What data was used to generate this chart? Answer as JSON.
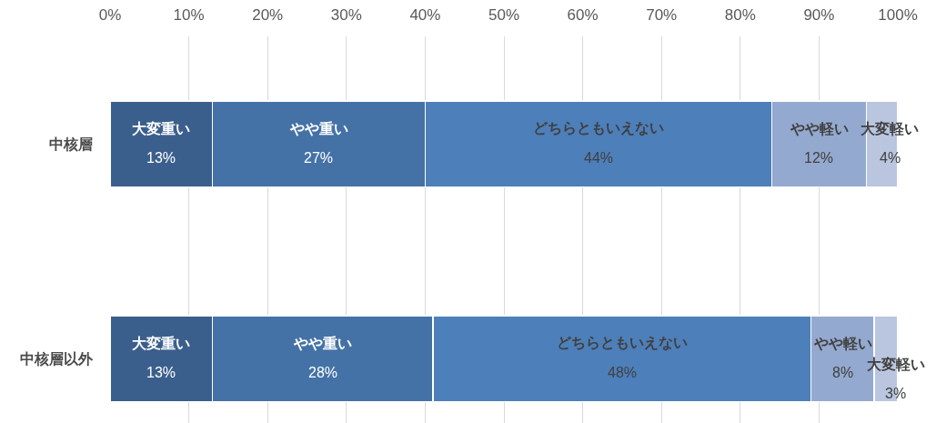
{
  "chart_data": {
    "type": "bar",
    "orientation": "horizontal",
    "stacked": true,
    "categories": [
      "中核層",
      "中核層以外"
    ],
    "series": [
      {
        "name": "大変重い",
        "color": "#3b5f8c",
        "values": [
          13,
          13
        ],
        "value_labels": [
          "13%",
          "13%"
        ]
      },
      {
        "name": "やや重い",
        "color": "#4472a6",
        "values": [
          27,
          28
        ],
        "value_labels": [
          "27%",
          "28%"
        ]
      },
      {
        "name": "どちらともいえない",
        "color": "#4d7fba",
        "values": [
          44,
          48
        ],
        "value_labels": [
          "44%",
          "48%"
        ]
      },
      {
        "name": "やや軽い",
        "color": "#94a9cf",
        "values": [
          12,
          8
        ],
        "value_labels": [
          "12%",
          "8%"
        ]
      },
      {
        "name": "大変軽い",
        "color": "#bac6df",
        "values": [
          4,
          3
        ],
        "value_labels": [
          "4%",
          "3%"
        ]
      }
    ],
    "xlim": [
      0,
      100
    ],
    "xticks": [
      {
        "value": 0,
        "label": "0%"
      },
      {
        "value": 10,
        "label": "10%"
      },
      {
        "value": 20,
        "label": "20%"
      },
      {
        "value": 30,
        "label": "30%"
      },
      {
        "value": 40,
        "label": "40%"
      },
      {
        "value": 50,
        "label": "50%"
      },
      {
        "value": 60,
        "label": "60%"
      },
      {
        "value": 70,
        "label": "70%"
      },
      {
        "value": 80,
        "label": "80%"
      },
      {
        "value": 90,
        "label": "90%"
      },
      {
        "value": 100,
        "label": "100%"
      }
    ],
    "grid": "x"
  }
}
